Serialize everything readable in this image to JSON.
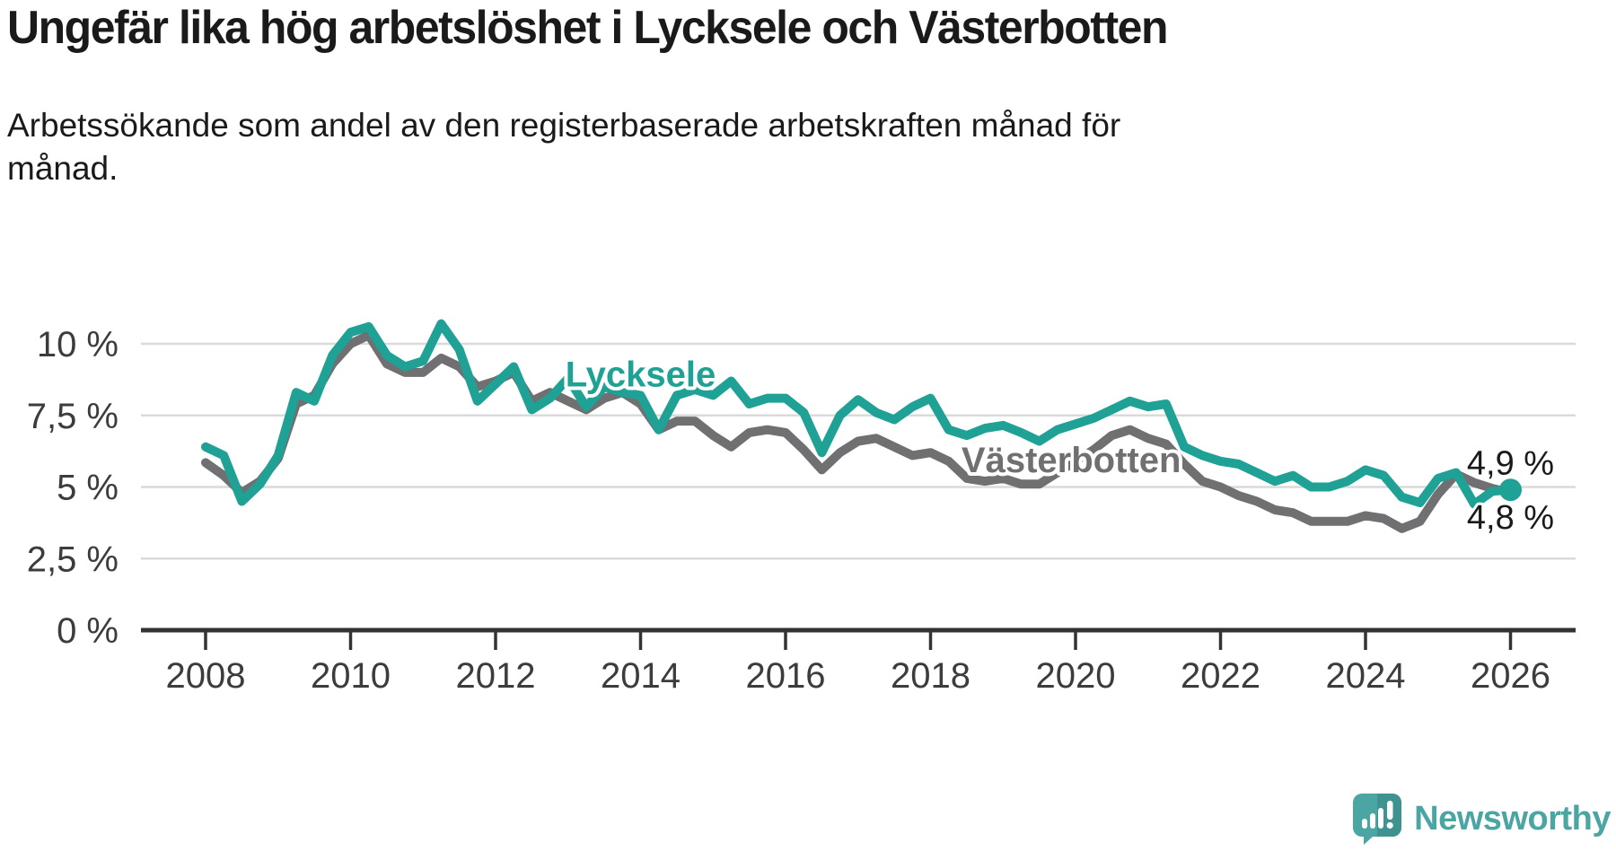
{
  "header": {
    "title": "Ungefär lika hög arbetslöshet i Lycksele och Västerbotten",
    "subtitle": "Arbetssökande som andel av den registerbaserade arbetskraften månad för månad."
  },
  "chart_data": {
    "type": "line",
    "title": "Ungefär lika hög arbetslöshet i Lycksele och Västerbotten",
    "subtitle": "Arbetssökande som andel av den registerbaserade arbetskraften månad för månad.",
    "unit": "%",
    "xlim": [
      2008,
      2026
    ],
    "ylim": [
      0,
      11
    ],
    "grid": "horizontal",
    "x_start": 2008,
    "x_step_years": 0.25,
    "x_end": 2026,
    "xticks": [
      {
        "v": 2008,
        "label": "2008"
      },
      {
        "v": 2010,
        "label": "2010"
      },
      {
        "v": 2012,
        "label": "2012"
      },
      {
        "v": 2014,
        "label": "2014"
      },
      {
        "v": 2016,
        "label": "2016"
      },
      {
        "v": 2018,
        "label": "2018"
      },
      {
        "v": 2020,
        "label": "2020"
      },
      {
        "v": 2022,
        "label": "2022"
      },
      {
        "v": 2024,
        "label": "2024"
      },
      {
        "v": 2026,
        "label": "2026"
      }
    ],
    "yticks": [
      {
        "v": 0,
        "label": "0 %"
      },
      {
        "v": 2.5,
        "label": "2,5 %"
      },
      {
        "v": 5,
        "label": "5 %"
      },
      {
        "v": 7.5,
        "label": "7,5 %"
      },
      {
        "v": 10,
        "label": "10 %"
      }
    ],
    "series": [
      {
        "name": "Lycksele",
        "color": "#1FA295",
        "end_dot": true,
        "values": [
          6.4,
          6.1,
          4.5,
          5.1,
          6.1,
          8.3,
          8.0,
          9.6,
          10.4,
          10.6,
          9.6,
          9.2,
          9.4,
          10.7,
          9.8,
          8.0,
          8.6,
          9.2,
          7.7,
          8.1,
          8.8,
          7.8,
          8.5,
          8.3,
          8.2,
          7.0,
          8.2,
          8.4,
          8.2,
          8.7,
          7.9,
          8.1,
          8.1,
          7.6,
          6.2,
          7.5,
          8.05,
          7.6,
          7.35,
          7.8,
          8.1,
          7.0,
          6.8,
          7.05,
          7.15,
          6.9,
          6.6,
          7.0,
          7.2,
          7.4,
          7.7,
          8.0,
          7.8,
          7.9,
          6.4,
          6.1,
          5.9,
          5.8,
          5.5,
          5.2,
          5.4,
          5.0,
          5.0,
          5.2,
          5.6,
          5.4,
          4.65,
          4.45,
          5.3,
          5.5,
          4.4,
          4.85,
          4.9
        ]
      },
      {
        "name": "Västerbotten",
        "color": "#706F71",
        "end_dot": false,
        "values": [
          5.85,
          5.4,
          4.8,
          5.2,
          6.0,
          7.9,
          8.2,
          9.3,
          10.0,
          10.3,
          9.3,
          9.0,
          9.0,
          9.5,
          9.2,
          8.5,
          8.7,
          9.0,
          8.0,
          8.3,
          8.0,
          7.7,
          8.1,
          8.3,
          7.9,
          7.0,
          7.3,
          7.3,
          6.8,
          6.4,
          6.9,
          7.0,
          6.9,
          6.3,
          5.6,
          6.2,
          6.6,
          6.7,
          6.4,
          6.1,
          6.2,
          5.9,
          5.3,
          5.2,
          5.3,
          5.1,
          5.1,
          5.5,
          5.9,
          6.3,
          6.8,
          7.0,
          6.7,
          6.5,
          5.8,
          5.2,
          5.0,
          4.7,
          4.5,
          4.2,
          4.1,
          3.8,
          3.8,
          3.8,
          4.0,
          3.9,
          3.55,
          3.8,
          4.75,
          5.45,
          5.15,
          4.95,
          4.8
        ]
      }
    ],
    "series_annotations": [
      {
        "text": "Lycksele",
        "x": 2014.0,
        "y": 8.95,
        "color": "#1FA295"
      },
      {
        "text": "Västerbotten",
        "x": 2019.94,
        "y": 5.95,
        "color": "#706F71"
      }
    ],
    "end_labels": [
      {
        "text": "4,9 %",
        "series": "Lycksele",
        "x": 2026,
        "y": 5.85
      },
      {
        "text": "4,8 %",
        "series": "Västerbotten",
        "x": 2026,
        "y": 3.95
      }
    ]
  },
  "footer": {
    "brand": "Newsworthy",
    "logo_color": "#4BA5A3"
  },
  "colors": {
    "lycksele": "#1FA295",
    "vasterbotten": "#706F71",
    "grid": "#DADADA",
    "axis": "#333333",
    "axis_text": "#3C3C3C",
    "text": "#1A1A1A"
  }
}
